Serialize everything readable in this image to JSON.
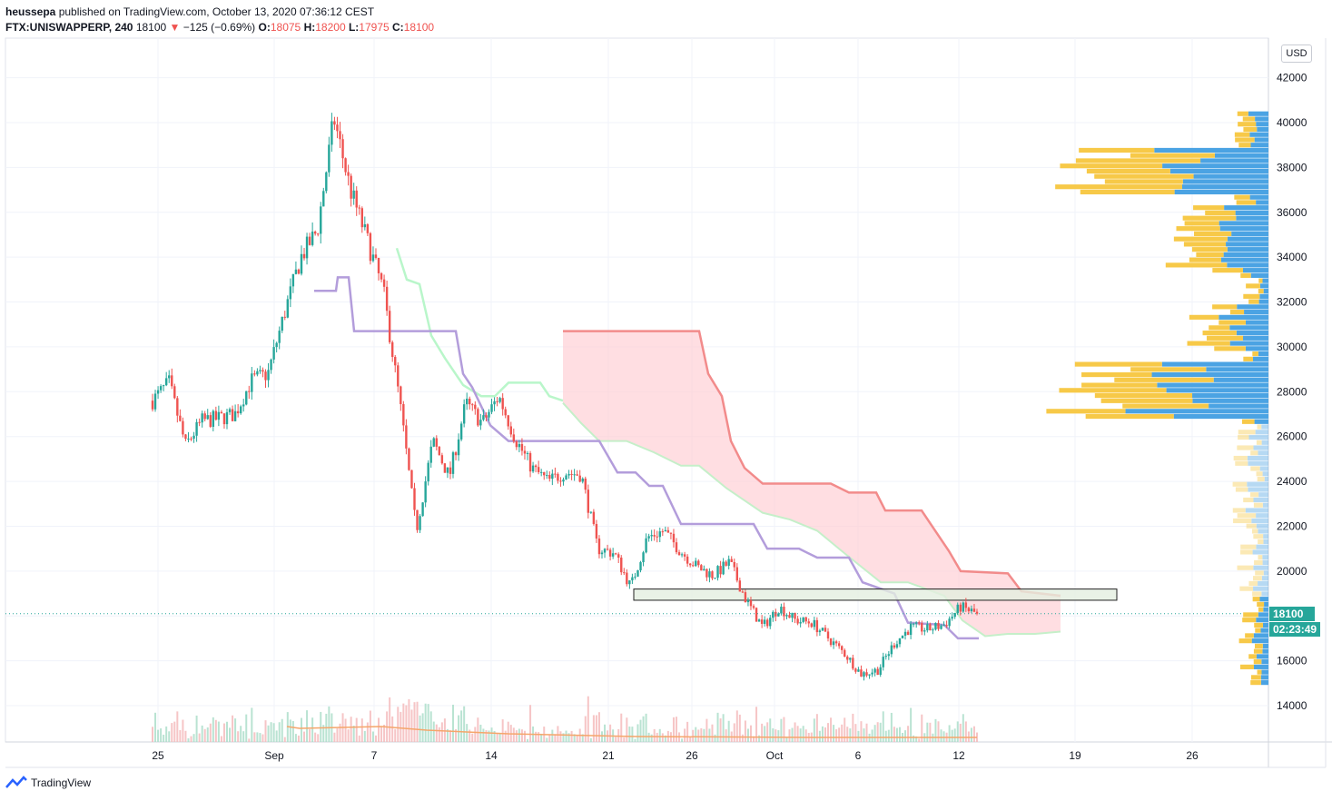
{
  "header": {
    "publisher": "heussepa",
    "published_text": "published on TradingView.com, October 13, 2020 07:36:12 CEST",
    "symbol": "FTX:UNISWAPPERP, 240",
    "last": "18100",
    "change": "−125 (−0.69%)",
    "o_label": "O:",
    "o": "18075",
    "h_label": "H:",
    "h": "18200",
    "l_label": "L:",
    "l": "17975",
    "c_label": "C:",
    "c": "18100"
  },
  "price_axis": {
    "currency": "USD",
    "last_price_tag": "18100",
    "countdown_tag": "02:23:49"
  },
  "brand": {
    "name": "TradingView"
  },
  "colors": {
    "up": "#26a69a",
    "down": "#ef5350",
    "cloud": "#ffcdd2",
    "lagging": "#b9f6ca",
    "conversion": "#b39ddb",
    "vp_up": "#4ba3e3",
    "vp_down": "#f7c948",
    "ma": "#f5a66b"
  },
  "chart_data": {
    "type": "candlestick",
    "timeframe": "240",
    "x_tick_labels": [
      "25",
      "Sep",
      "7",
      "14",
      "21",
      "26",
      "Oct",
      "6",
      "12",
      "19",
      "26"
    ],
    "y_tick_labels": [
      "42000",
      "40000",
      "38000",
      "36000",
      "34000",
      "32000",
      "30000",
      "28000",
      "26000",
      "24000",
      "22000",
      "20000",
      "18000",
      "16000",
      "14000"
    ],
    "ylim": [
      12400,
      43000
    ],
    "price_path": [
      [
        "Aug 24",
        27600
      ],
      [
        "Aug 25",
        28400
      ],
      [
        "Aug 26",
        25600
      ],
      [
        "Aug 27",
        26700
      ],
      [
        "Aug 28",
        26800
      ],
      [
        "Aug 29",
        27000
      ],
      [
        "Aug 30",
        28500
      ],
      [
        "Aug 31",
        28800
      ],
      [
        "Sep 1",
        31500
      ],
      [
        "Sep 2",
        34000
      ],
      [
        "Sep 3",
        35200
      ],
      [
        "Sep 4",
        40200
      ],
      [
        "Sep 5",
        37000
      ],
      [
        "Sep 6",
        34800
      ],
      [
        "Sep 7",
        32500
      ],
      [
        "Sep 8",
        27500
      ],
      [
        "Sep 9",
        21800
      ],
      [
        "Sep 10",
        25800
      ],
      [
        "Sep 11",
        24200
      ],
      [
        "Sep 12",
        27500
      ],
      [
        "Sep 13",
        26600
      ],
      [
        "Sep 14",
        27800
      ],
      [
        "Sep 15",
        25900
      ],
      [
        "Sep 16",
        24600
      ],
      [
        "Sep 17",
        24000
      ],
      [
        "Sep 18",
        24400
      ],
      [
        "Sep 19",
        24300
      ],
      [
        "Sep 20",
        21000
      ],
      [
        "Sep 21",
        20800
      ],
      [
        "Sep 22",
        19300
      ],
      [
        "Sep 23",
        21500
      ],
      [
        "Sep 24",
        21800
      ],
      [
        "Sep 25",
        20900
      ],
      [
        "Sep 26",
        20200
      ],
      [
        "Sep 27",
        19800
      ],
      [
        "Sep 28",
        20400
      ],
      [
        "Sep 29",
        18700
      ],
      [
        "Sep 30",
        17500
      ],
      [
        "Oct 1",
        18400
      ],
      [
        "Oct 2",
        17800
      ],
      [
        "Oct 3",
        17700
      ],
      [
        "Oct 4",
        17000
      ],
      [
        "Oct 5",
        16300
      ],
      [
        "Oct 6",
        15400
      ],
      [
        "Oct 7",
        15600
      ],
      [
        "Oct 8",
        16800
      ],
      [
        "Oct 9",
        17500
      ],
      [
        "Oct 10",
        17400
      ],
      [
        "Oct 11",
        17600
      ],
      [
        "Oct 12",
        18400
      ],
      [
        "Oct 13",
        18100
      ]
    ],
    "last_price": 18100,
    "support_zone": [
      18700,
      19200
    ],
    "ichimoku_cloud": {
      "top_high": 30700,
      "bottom_low": 17200
    },
    "volume_profile": {
      "high_volume_zones": [
        [
          27000,
          29500
        ],
        [
          37000,
          39000
        ]
      ]
    }
  }
}
